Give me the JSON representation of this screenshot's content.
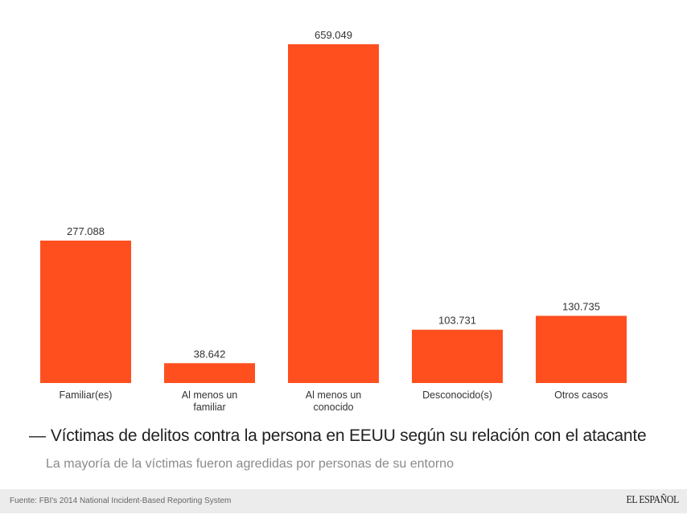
{
  "chart_data": {
    "type": "bar",
    "title": "Víctimas de delitos contra la persona en EEUU según su relación con el atacante",
    "subtitle": "La mayoría de la víctimas fueron agredidas por personas de su entorno",
    "categories": [
      [
        "Familiar(es)"
      ],
      [
        "Al menos un",
        "familiar"
      ],
      [
        "Al menos un",
        "conocido"
      ],
      [
        "Desconocido(s)"
      ],
      [
        "Otros casos"
      ]
    ],
    "values": [
      277088,
      38642,
      659049,
      103731,
      130735
    ],
    "value_labels": [
      "277.088",
      "38.642",
      "659.049",
      "103.731",
      "130.735"
    ],
    "ylim": [
      0,
      659049
    ],
    "xlabel": "",
    "ylabel": "",
    "grid": false,
    "bar_color": "#ff4f1f"
  },
  "caption": {
    "dash": "—",
    "title": "Víctimas de delitos contra la persona en EEUU según su relación con el atacante",
    "subtitle": "La mayoría de la víctimas fueron agredidas por personas de su entorno"
  },
  "footer": {
    "source": "Fuente: FBI's 2014 National Incident-Based Reporting System",
    "logo": "EL ESPAÑOL"
  }
}
